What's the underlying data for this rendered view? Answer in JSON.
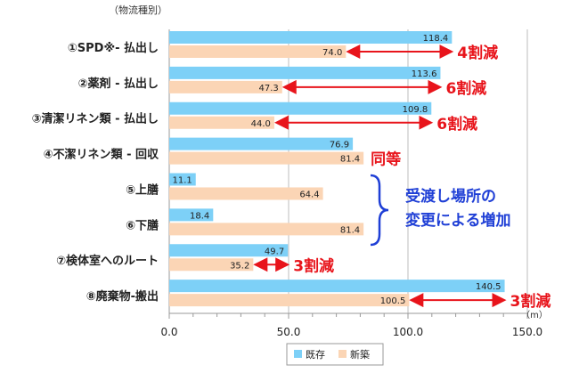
{
  "chart_data": {
    "type": "bar",
    "orientation": "horizontal",
    "category_header": "（物流種別）",
    "categories": [
      "①SPD※- 払出し",
      "②薬剤 - 払出し",
      "③清潔リネン類 - 払出し",
      "④不潔リネン類 - 回収",
      "⑤上膳",
      "⑥下膳",
      "⑦検体室へのルート",
      "⑧廃棄物-搬出"
    ],
    "series": [
      {
        "name": "既存",
        "color": "#7dd0f7",
        "values": [
          118.4,
          113.6,
          109.8,
          76.9,
          11.1,
          18.4,
          49.7,
          140.5
        ]
      },
      {
        "name": "新築",
        "color": "#fbd5b5",
        "values": [
          74.0,
          47.3,
          44.0,
          81.4,
          64.4,
          81.4,
          35.2,
          100.5
        ]
      }
    ],
    "xlim": [
      0,
      150
    ],
    "xticks": [
      "0.0",
      "50.0",
      "100.0",
      "150.0"
    ],
    "unit": "（m）",
    "grid": true,
    "legend": "bottom",
    "annotations": [
      {
        "category": 0,
        "text": "4割減",
        "color": "#e8141b"
      },
      {
        "category": 1,
        "text": "6割減",
        "color": "#e8141b"
      },
      {
        "category": 2,
        "text": "6割減",
        "color": "#e8141b"
      },
      {
        "category": 3,
        "text": "同等",
        "color": "#e8141b"
      },
      {
        "category": 6,
        "text": "3割減",
        "color": "#e8141b"
      },
      {
        "category": 7,
        "text": "3割減",
        "color": "#e8141b"
      }
    ],
    "group_annotation": {
      "categories": [
        4,
        5
      ],
      "lines": [
        "受渡し場所の",
        "変更による増加"
      ],
      "color": "#1f3fd6"
    }
  }
}
